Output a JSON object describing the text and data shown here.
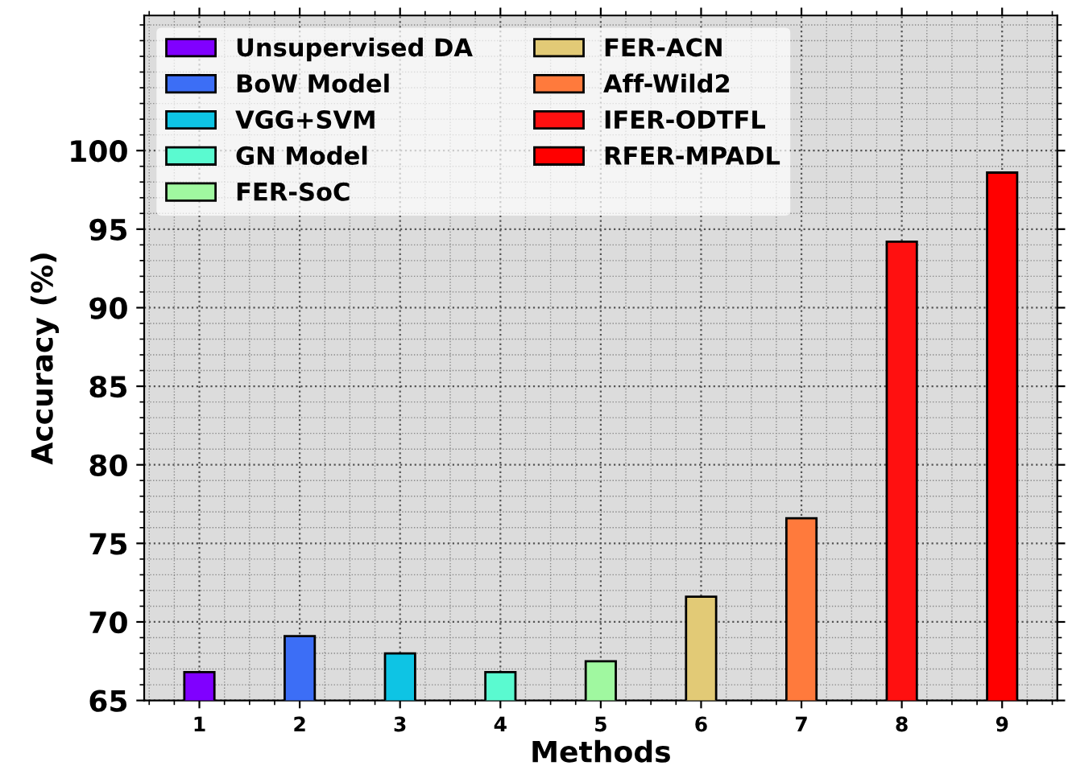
{
  "chart_data": {
    "type": "bar",
    "xlabel": "Methods",
    "ylabel": "Accuracy (%)",
    "series": [
      {
        "name": "Unsupervised DA",
        "color": "#8000ff",
        "x": [
          1
        ],
        "values": [
          66.8
        ]
      },
      {
        "name": "BoW Model",
        "color": "#3c6ef6",
        "x": [
          2
        ],
        "values": [
          69.1
        ]
      },
      {
        "name": "VGG+SVM",
        "color": "#0ec4e4",
        "x": [
          3
        ],
        "values": [
          68.0
        ]
      },
      {
        "name": "GN Model",
        "color": "#5afad0",
        "x": [
          4
        ],
        "values": [
          66.8
        ]
      },
      {
        "name": "FER-SoC",
        "color": "#a0f8a0",
        "x": [
          5
        ],
        "values": [
          67.5
        ]
      },
      {
        "name": "FER-ACN",
        "color": "#e2ca76",
        "x": [
          6
        ],
        "values": [
          71.6
        ]
      },
      {
        "name": "Aff-Wild2",
        "color": "#ff7a3c",
        "x": [
          7
        ],
        "values": [
          76.6
        ]
      },
      {
        "name": "IFER-ODTFL",
        "color": "#ff1010",
        "x": [
          8
        ],
        "values": [
          94.2
        ]
      },
      {
        "name": "RFER-MPADL",
        "color": "#ff0000",
        "x": [
          9
        ],
        "values": [
          98.6
        ]
      }
    ],
    "xlim": [
      0.45,
      9.55
    ],
    "xticks": [
      1,
      2,
      3,
      4,
      5,
      6,
      7,
      8,
      9
    ],
    "ylim": [
      65,
      108.6
    ],
    "yticks": [
      65,
      70,
      75,
      80,
      85,
      90,
      95,
      100
    ],
    "grid": true,
    "legend": "top left"
  }
}
